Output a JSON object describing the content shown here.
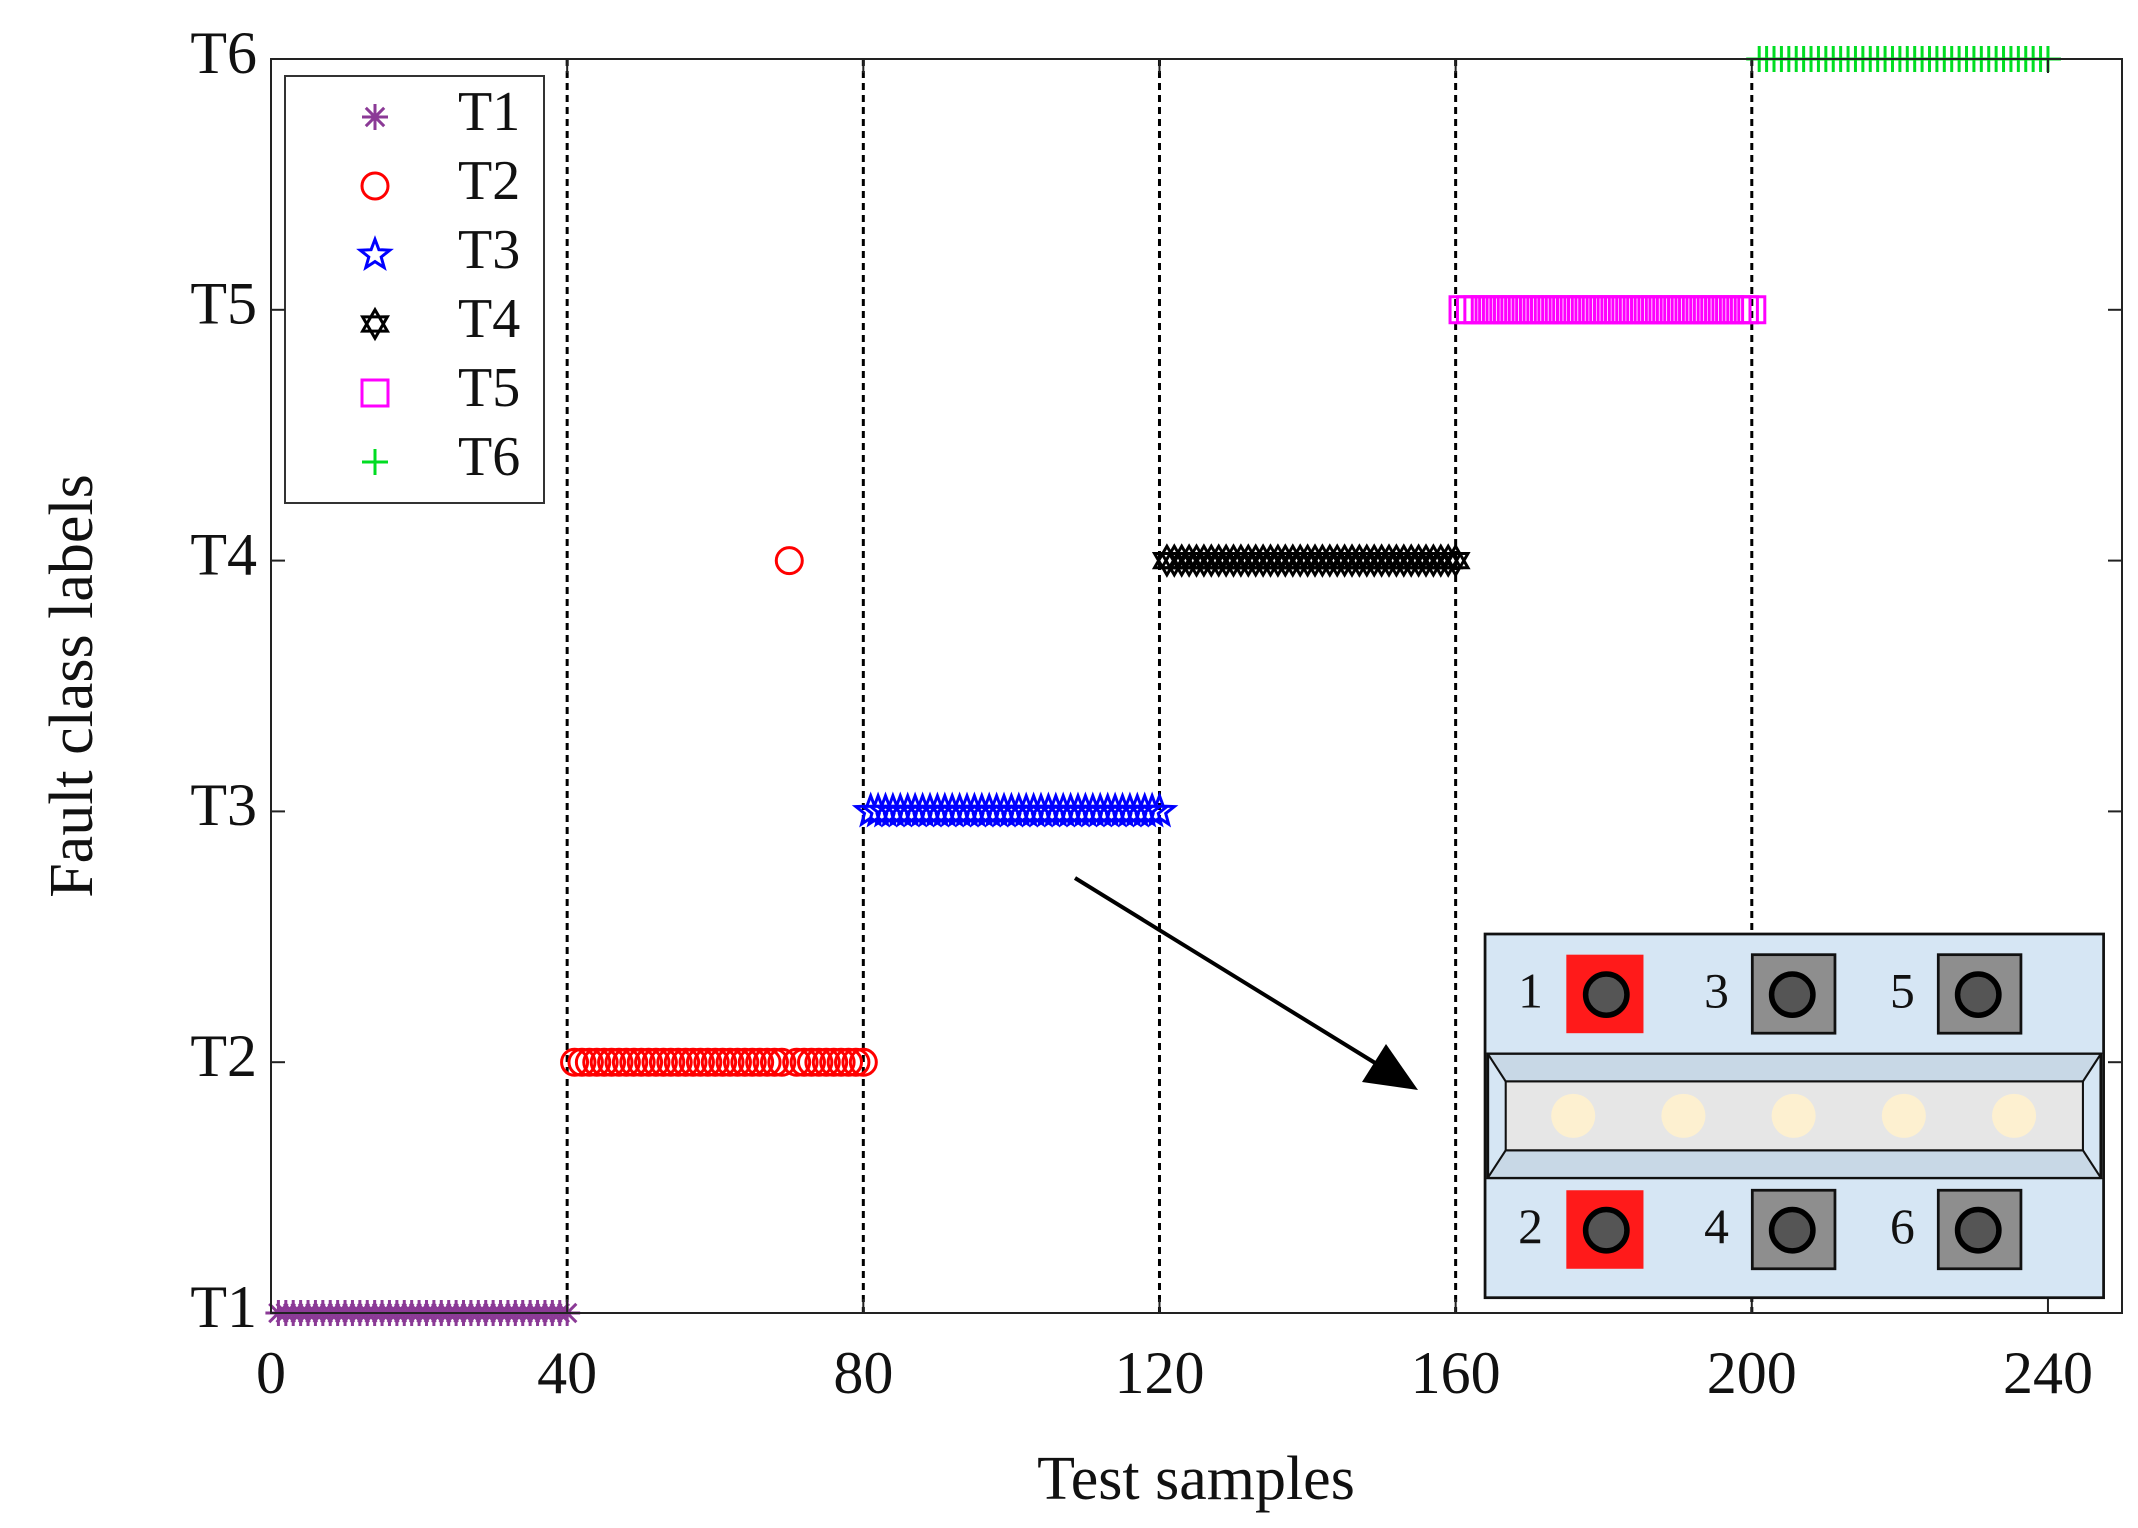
{
  "chart_data": {
    "type": "scatter",
    "xlabel": "Test samples",
    "ylabel": "Fault class labels",
    "xlim": [
      0,
      250
    ],
    "ylim": [
      1,
      6
    ],
    "xticks": [
      0,
      40,
      80,
      120,
      160,
      200,
      240
    ],
    "yticks": [
      {
        "value": 1,
        "label": "T1"
      },
      {
        "value": 2,
        "label": "T2"
      },
      {
        "value": 3,
        "label": "T3"
      },
      {
        "value": 4,
        "label": "T4"
      },
      {
        "value": 5,
        "label": "T5"
      },
      {
        "value": 6,
        "label": "T6"
      }
    ],
    "vlines": [
      40,
      80,
      120,
      160,
      200
    ],
    "legend": "upper left",
    "series": [
      {
        "name": "T1",
        "color": "#8b3a96",
        "marker": "asterisk",
        "x": [
          1,
          2,
          3,
          4,
          5,
          6,
          7,
          8,
          9,
          10,
          11,
          12,
          13,
          14,
          15,
          16,
          17,
          18,
          19,
          20,
          21,
          22,
          23,
          24,
          25,
          26,
          27,
          28,
          29,
          30,
          31,
          32,
          33,
          34,
          35,
          36,
          37,
          38,
          39,
          40
        ],
        "values": [
          1,
          1,
          1,
          1,
          1,
          1,
          1,
          1,
          1,
          1,
          1,
          1,
          1,
          1,
          1,
          1,
          1,
          1,
          1,
          1,
          1,
          1,
          1,
          1,
          1,
          1,
          1,
          1,
          1,
          1,
          1,
          1,
          1,
          1,
          1,
          1,
          1,
          1,
          1,
          1
        ]
      },
      {
        "name": "T2",
        "color": "#ff0000",
        "marker": "circle",
        "x": [
          41,
          42,
          43,
          44,
          45,
          46,
          47,
          48,
          49,
          50,
          51,
          52,
          53,
          54,
          55,
          56,
          57,
          58,
          59,
          60,
          61,
          62,
          63,
          64,
          65,
          66,
          67,
          68,
          69,
          70,
          71,
          72,
          73,
          74,
          75,
          76,
          77,
          78,
          79,
          80
        ],
        "values": [
          2,
          2,
          2,
          2,
          2,
          2,
          2,
          2,
          2,
          2,
          2,
          2,
          2,
          2,
          2,
          2,
          2,
          2,
          2,
          2,
          2,
          2,
          2,
          2,
          2,
          2,
          2,
          2,
          2,
          4,
          2,
          2,
          2,
          2,
          2,
          2,
          2,
          2,
          2,
          2
        ]
      },
      {
        "name": "T3",
        "color": "#0000ff",
        "marker": "star",
        "x": [
          81,
          82,
          83,
          84,
          85,
          86,
          87,
          88,
          89,
          90,
          91,
          92,
          93,
          94,
          95,
          96,
          97,
          98,
          99,
          100,
          101,
          102,
          103,
          104,
          105,
          106,
          107,
          108,
          109,
          110,
          111,
          112,
          113,
          114,
          115,
          116,
          117,
          118,
          119,
          120
        ],
        "values": [
          3,
          3,
          3,
          3,
          3,
          3,
          3,
          3,
          3,
          3,
          3,
          3,
          3,
          3,
          3,
          3,
          3,
          3,
          3,
          3,
          3,
          3,
          3,
          3,
          3,
          3,
          3,
          3,
          3,
          3,
          3,
          3,
          3,
          3,
          3,
          3,
          3,
          3,
          3,
          3
        ]
      },
      {
        "name": "T4",
        "color": "#000000",
        "marker": "hexagram",
        "x": [
          121,
          122,
          123,
          124,
          125,
          126,
          127,
          128,
          129,
          130,
          131,
          132,
          133,
          134,
          135,
          136,
          137,
          138,
          139,
          140,
          141,
          142,
          143,
          144,
          145,
          146,
          147,
          148,
          149,
          150,
          151,
          152,
          153,
          154,
          155,
          156,
          157,
          158,
          159,
          160
        ],
        "values": [
          4,
          4,
          4,
          4,
          4,
          4,
          4,
          4,
          4,
          4,
          4,
          4,
          4,
          4,
          4,
          4,
          4,
          4,
          4,
          4,
          4,
          4,
          4,
          4,
          4,
          4,
          4,
          4,
          4,
          4,
          4,
          4,
          4,
          4,
          4,
          4,
          4,
          4,
          4,
          4
        ]
      },
      {
        "name": "T5",
        "color": "#ff00ff",
        "marker": "square",
        "x": [
          161,
          162,
          163,
          164,
          165,
          166,
          167,
          168,
          169,
          170,
          171,
          172,
          173,
          174,
          175,
          176,
          177,
          178,
          179,
          180,
          181,
          182,
          183,
          184,
          185,
          186,
          187,
          188,
          189,
          190,
          191,
          192,
          193,
          194,
          195,
          196,
          197,
          198,
          199,
          200
        ],
        "values": [
          5,
          5,
          5,
          5,
          5,
          5,
          5,
          5,
          5,
          5,
          5,
          5,
          5,
          5,
          5,
          5,
          5,
          5,
          5,
          5,
          5,
          5,
          5,
          5,
          5,
          5,
          5,
          5,
          5,
          5,
          5,
          5,
          5,
          5,
          5,
          5,
          5,
          5,
          5,
          5
        ]
      },
      {
        "name": "T6",
        "color": "#00dd22",
        "marker": "plus",
        "x": [
          201,
          202,
          203,
          204,
          205,
          206,
          207,
          208,
          209,
          210,
          211,
          212,
          213,
          214,
          215,
          216,
          217,
          218,
          219,
          220,
          221,
          222,
          223,
          224,
          225,
          226,
          227,
          228,
          229,
          230,
          231,
          232,
          233,
          234,
          235,
          236,
          237,
          238,
          239,
          240
        ],
        "values": [
          6,
          6,
          6,
          6,
          6,
          6,
          6,
          6,
          6,
          6,
          6,
          6,
          6,
          6,
          6,
          6,
          6,
          6,
          6,
          6,
          6,
          6,
          6,
          6,
          6,
          6,
          6,
          6,
          6,
          6,
          6,
          6,
          6,
          6,
          6,
          6,
          6,
          6,
          6,
          6
        ]
      }
    ],
    "inset": {
      "labels": [
        "1",
        "3",
        "5",
        "2",
        "4",
        "6"
      ]
    }
  }
}
